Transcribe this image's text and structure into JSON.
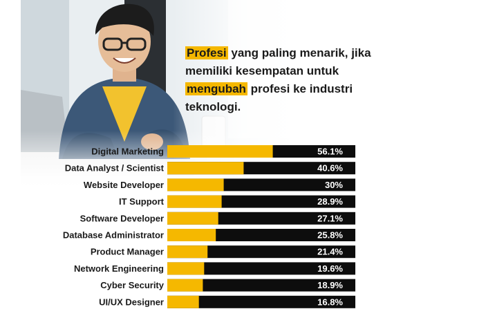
{
  "headline": {
    "part1": "Profesi",
    "part2": " yang paling menarik, jika memiliki kesempatan untuk ",
    "part3": "mengubah",
    "part4": " profesi ke industri teknologi."
  },
  "colors": {
    "accent": "#f5b800",
    "track": "#0d0d0d"
  },
  "chart_data": {
    "type": "bar",
    "orientation": "horizontal",
    "title": "",
    "xlabel": "",
    "ylabel": "",
    "xlim": [
      0,
      100
    ],
    "categories": [
      "Digital Marketing",
      "Data Analyst / Scientist",
      "Website Developer",
      "IT Support",
      "Software Developer",
      "Database Administrator",
      "Product Manager",
      "Network Engineering",
      "Cyber Security",
      "UI/UX Designer"
    ],
    "values": [
      56.1,
      40.6,
      30,
      28.9,
      27.1,
      25.8,
      21.4,
      19.6,
      18.9,
      16.8
    ],
    "value_labels": [
      "56.1%",
      "40.6%",
      "30%",
      "28.9%",
      "27.1%",
      "25.8%",
      "21.4%",
      "19.6%",
      "18.9%",
      "16.8%"
    ],
    "grid": false,
    "legend": "none"
  }
}
